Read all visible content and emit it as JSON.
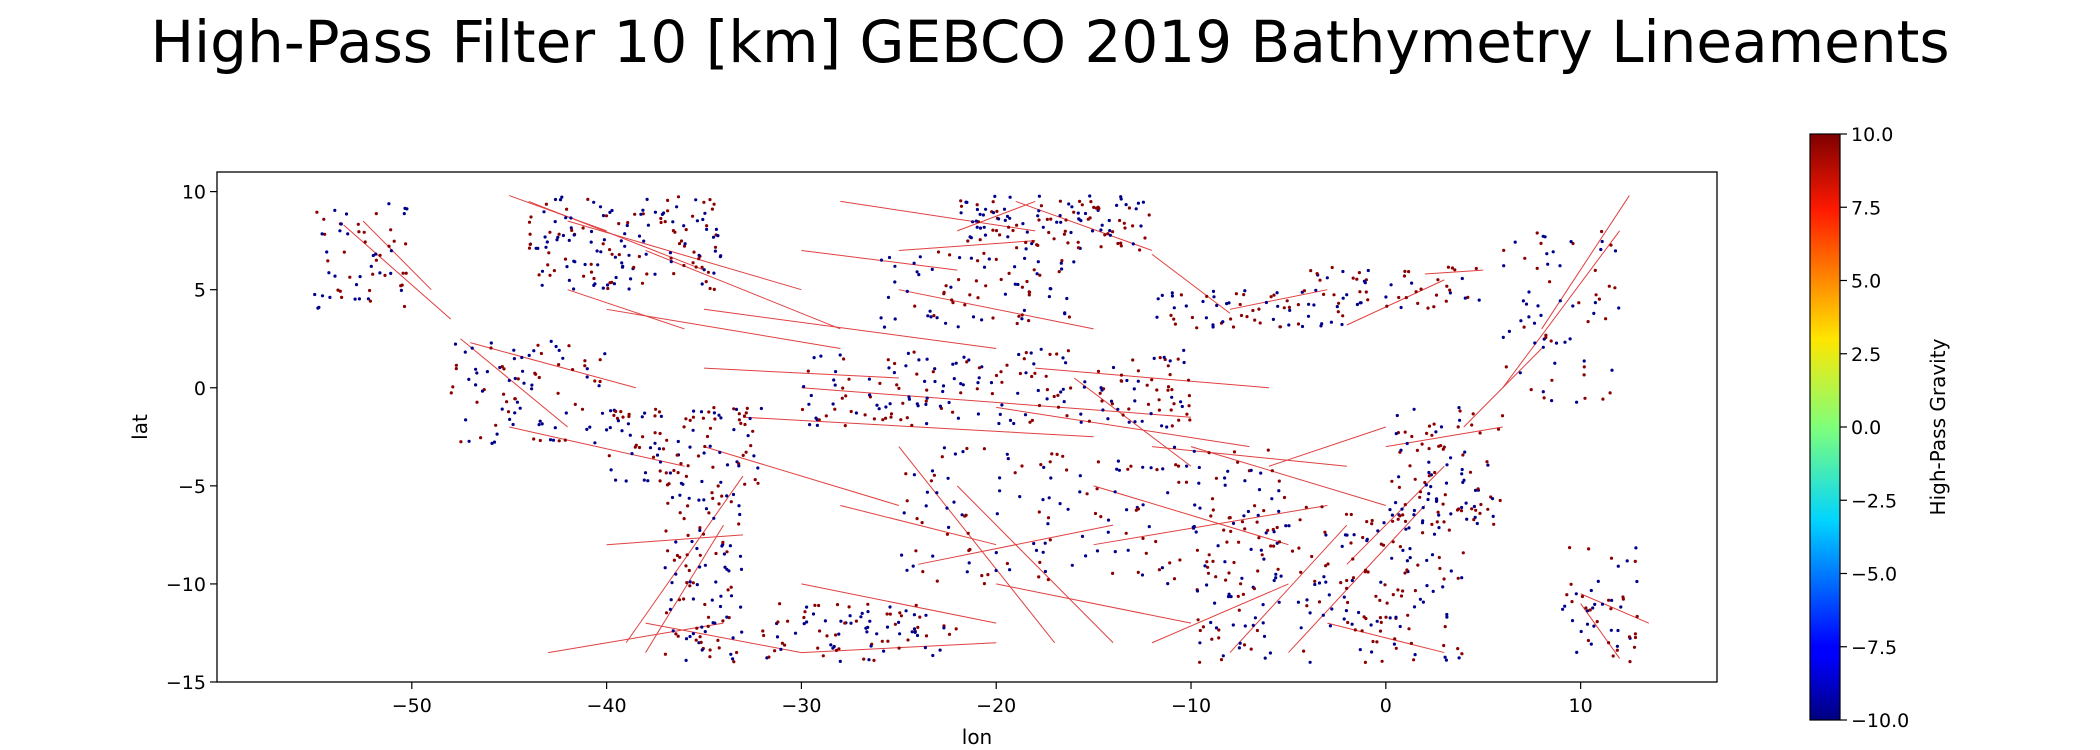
{
  "chart_data": {
    "type": "scatter",
    "title": "High-Pass Filter 10 [km] GEBCO 2019 Bathymetry Lineaments",
    "xlabel": "lon",
    "ylabel": "lat",
    "xlim": [
      -60,
      17
    ],
    "ylim": [
      -15,
      11
    ],
    "xticks": [
      -50,
      -40,
      -30,
      -20,
      -10,
      0,
      10
    ],
    "xtick_labels": [
      "−50",
      "−40",
      "−30",
      "−20",
      "−10",
      "0",
      "10"
    ],
    "yticks": [
      10,
      5,
      0,
      -5,
      -10,
      -15
    ],
    "ytick_labels": [
      "10",
      "5",
      "0",
      "−5",
      "−10",
      "−15"
    ],
    "grid": false,
    "legend": "none",
    "colorbar": {
      "label": "High-Pass Gravity",
      "range": [
        -10,
        10
      ],
      "ticks": [
        10,
        7.5,
        5,
        2.5,
        0,
        -2.5,
        -5,
        -7.5,
        -10
      ],
      "tick_labels": [
        "10.0",
        "7.5",
        "5.0",
        "2.5",
        "0.0",
        "−2.5",
        "−5.0",
        "−7.5",
        "−10.0"
      ],
      "colormap": "jet"
    },
    "colors": {
      "points_low": "#00008b",
      "points_high": "#8b0000",
      "lineaments": "#e04040"
    },
    "point_clusters": [
      {
        "lon": [
          -55,
          -50
        ],
        "lat": [
          4,
          9.5
        ],
        "n": 60
      },
      {
        "lon": [
          -48,
          -40
        ],
        "lat": [
          -3,
          2.5
        ],
        "n": 90
      },
      {
        "lon": [
          -44,
          -34
        ],
        "lat": [
          5,
          9.8
        ],
        "n": 160
      },
      {
        "lon": [
          -40,
          -32
        ],
        "lat": [
          -5,
          -1
        ],
        "n": 110
      },
      {
        "lon": [
          -37,
          -33
        ],
        "lat": [
          -14,
          -5
        ],
        "n": 110
      },
      {
        "lon": [
          -32,
          -22
        ],
        "lat": [
          -14,
          -11
        ],
        "n": 90
      },
      {
        "lon": [
          -30,
          -10
        ],
        "lat": [
          -2,
          2
        ],
        "n": 200
      },
      {
        "lon": [
          -22,
          -12
        ],
        "lat": [
          7,
          9.8
        ],
        "n": 120
      },
      {
        "lon": [
          -12,
          -2
        ],
        "lat": [
          3,
          5
        ],
        "n": 70
      },
      {
        "lon": [
          -4,
          5
        ],
        "lat": [
          4,
          6.2
        ],
        "n": 50
      },
      {
        "lon": [
          -10,
          4
        ],
        "lat": [
          -14,
          -6
        ],
        "n": 220
      },
      {
        "lon": [
          0,
          6
        ],
        "lat": [
          -7,
          -1
        ],
        "n": 100
      },
      {
        "lon": [
          -25,
          -5
        ],
        "lat": [
          -10,
          -3
        ],
        "n": 180
      },
      {
        "lon": [
          6,
          12
        ],
        "lat": [
          -1,
          8
        ],
        "n": 70
      },
      {
        "lon": [
          9,
          13
        ],
        "lat": [
          -14,
          -8
        ],
        "n": 50
      },
      {
        "lon": [
          -26,
          -16
        ],
        "lat": [
          3,
          7
        ],
        "n": 80
      }
    ],
    "lineaments": [
      [
        -53.5,
        8.3,
        -48,
        3.5
      ],
      [
        -52.5,
        8.5,
        -49,
        5
      ],
      [
        -47.5,
        2.5,
        -42,
        -2
      ],
      [
        -47,
        2.3,
        -38.5,
        0
      ],
      [
        -45,
        -2,
        -36,
        -4
      ],
      [
        -44,
        9.5,
        -35,
        6
      ],
      [
        -42,
        8.5,
        -30,
        5
      ],
      [
        -42,
        5,
        -36,
        3
      ],
      [
        -38,
        7,
        -28,
        3
      ],
      [
        -40,
        4,
        -28,
        2
      ],
      [
        -38,
        -13.5,
        -34,
        -7
      ],
      [
        -39,
        -13,
        -33,
        -4.5
      ],
      [
        -40,
        -8,
        -33,
        -7.5
      ],
      [
        -43,
        -13.5,
        -34,
        -12
      ],
      [
        -38,
        -12,
        -30,
        -13.5
      ],
      [
        -30,
        -13.5,
        -20,
        -13
      ],
      [
        -35,
        1,
        -25,
        0.5
      ],
      [
        -35,
        4,
        -20,
        2
      ],
      [
        -30,
        0,
        -10,
        -1.5
      ],
      [
        -33,
        -1.5,
        -15,
        -2.5
      ],
      [
        -28,
        9.5,
        -18,
        8
      ],
      [
        -25,
        5,
        -15,
        3
      ],
      [
        -22,
        8,
        -18,
        9.5
      ],
      [
        -25,
        7,
        -18,
        7.5
      ],
      [
        -19,
        9.5,
        -12,
        7
      ],
      [
        -12,
        6.8,
        -8,
        3.8
      ],
      [
        -8,
        4,
        -3,
        5
      ],
      [
        -2,
        3.2,
        3,
        5.5
      ],
      [
        2,
        5.8,
        5,
        6
      ],
      [
        -25,
        -3,
        -17,
        -13
      ],
      [
        -22,
        -5,
        -14,
        -13
      ],
      [
        -24,
        -9,
        -14,
        -7
      ],
      [
        -20,
        -10,
        -10,
        -12
      ],
      [
        -15,
        -5,
        -5,
        -8
      ],
      [
        -10,
        -3,
        0,
        -6
      ],
      [
        -8,
        -13.5,
        -2,
        -7
      ],
      [
        -5,
        -13.5,
        2,
        -6
      ],
      [
        -2,
        -9,
        3,
        -4
      ],
      [
        0,
        -3,
        6,
        -2
      ],
      [
        4,
        -2,
        8,
        2
      ],
      [
        6,
        0,
        12,
        8
      ],
      [
        8,
        3,
        12.5,
        9.8
      ],
      [
        10,
        -10.5,
        13.5,
        -12
      ],
      [
        10,
        -11,
        12,
        -13.8
      ],
      [
        -28,
        -6,
        -20,
        -8
      ],
      [
        -18,
        1,
        -6,
        0
      ],
      [
        -20,
        -1,
        -7,
        -3
      ],
      [
        -12,
        -3,
        -2,
        -4
      ],
      [
        -15,
        -8,
        -3,
        -6
      ],
      [
        -30,
        -10,
        -20,
        -12
      ],
      [
        -35,
        -3,
        -25,
        -6
      ],
      [
        -16,
        0.5,
        -10,
        -4
      ],
      [
        -6,
        -4,
        0,
        -2
      ],
      [
        -3,
        -12,
        3,
        -13.5
      ],
      [
        -12,
        -13,
        -5,
        -10
      ],
      [
        -45,
        9.8,
        -40,
        8
      ],
      [
        -30,
        7,
        -22,
        6
      ]
    ]
  }
}
